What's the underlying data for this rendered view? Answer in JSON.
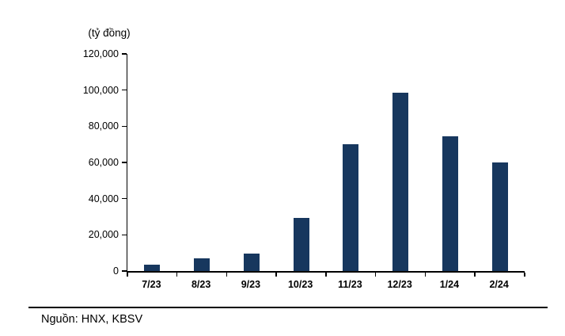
{
  "chart_data": {
    "type": "bar",
    "title": "",
    "ylabel": "(tỷ đồng)",
    "xlabel": "",
    "categories": [
      "7/23",
      "8/23",
      "9/23",
      "10/23",
      "11/23",
      "12/23",
      "1/24",
      "2/24"
    ],
    "values": [
      3500,
      7000,
      9500,
      29500,
      70000,
      98500,
      74500,
      60000
    ],
    "ylim": [
      0,
      120000
    ],
    "ytick_step": 20000,
    "bar_color": "#17375E",
    "grid": false,
    "legend_position": "none"
  },
  "source": {
    "text": "Nguồn: HNX, KBSV"
  }
}
